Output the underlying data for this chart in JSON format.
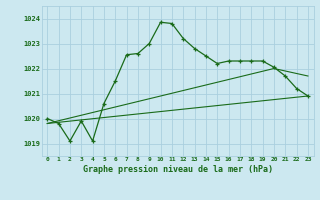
{
  "title": "Graphe pression niveau de la mer (hPa)",
  "background_color": "#cce8f0",
  "grid_color": "#aacfdf",
  "line_color": "#1a6b1a",
  "x_ticks": [
    0,
    1,
    2,
    3,
    4,
    5,
    6,
    7,
    8,
    9,
    10,
    11,
    12,
    13,
    14,
    15,
    16,
    17,
    18,
    19,
    20,
    21,
    22,
    23
  ],
  "y_ticks": [
    1019,
    1020,
    1021,
    1022,
    1023,
    1024
  ],
  "ylim": [
    1018.5,
    1024.5
  ],
  "xlim": [
    -0.5,
    23.5
  ],
  "series1": [
    1020.0,
    1019.8,
    1019.1,
    1019.9,
    1019.1,
    1020.6,
    1021.5,
    1022.55,
    1022.6,
    1023.0,
    1023.85,
    1023.8,
    1023.2,
    1022.8,
    1022.5,
    1022.2,
    1022.3,
    1022.3,
    1022.3,
    1022.3,
    1022.05,
    1021.7,
    1021.2,
    1020.9
  ],
  "series2_x": [
    0,
    23
  ],
  "series2_y": [
    1019.8,
    1020.9
  ],
  "series3_x": [
    0,
    20,
    23
  ],
  "series3_y": [
    1019.8,
    1022.0,
    1021.7
  ]
}
